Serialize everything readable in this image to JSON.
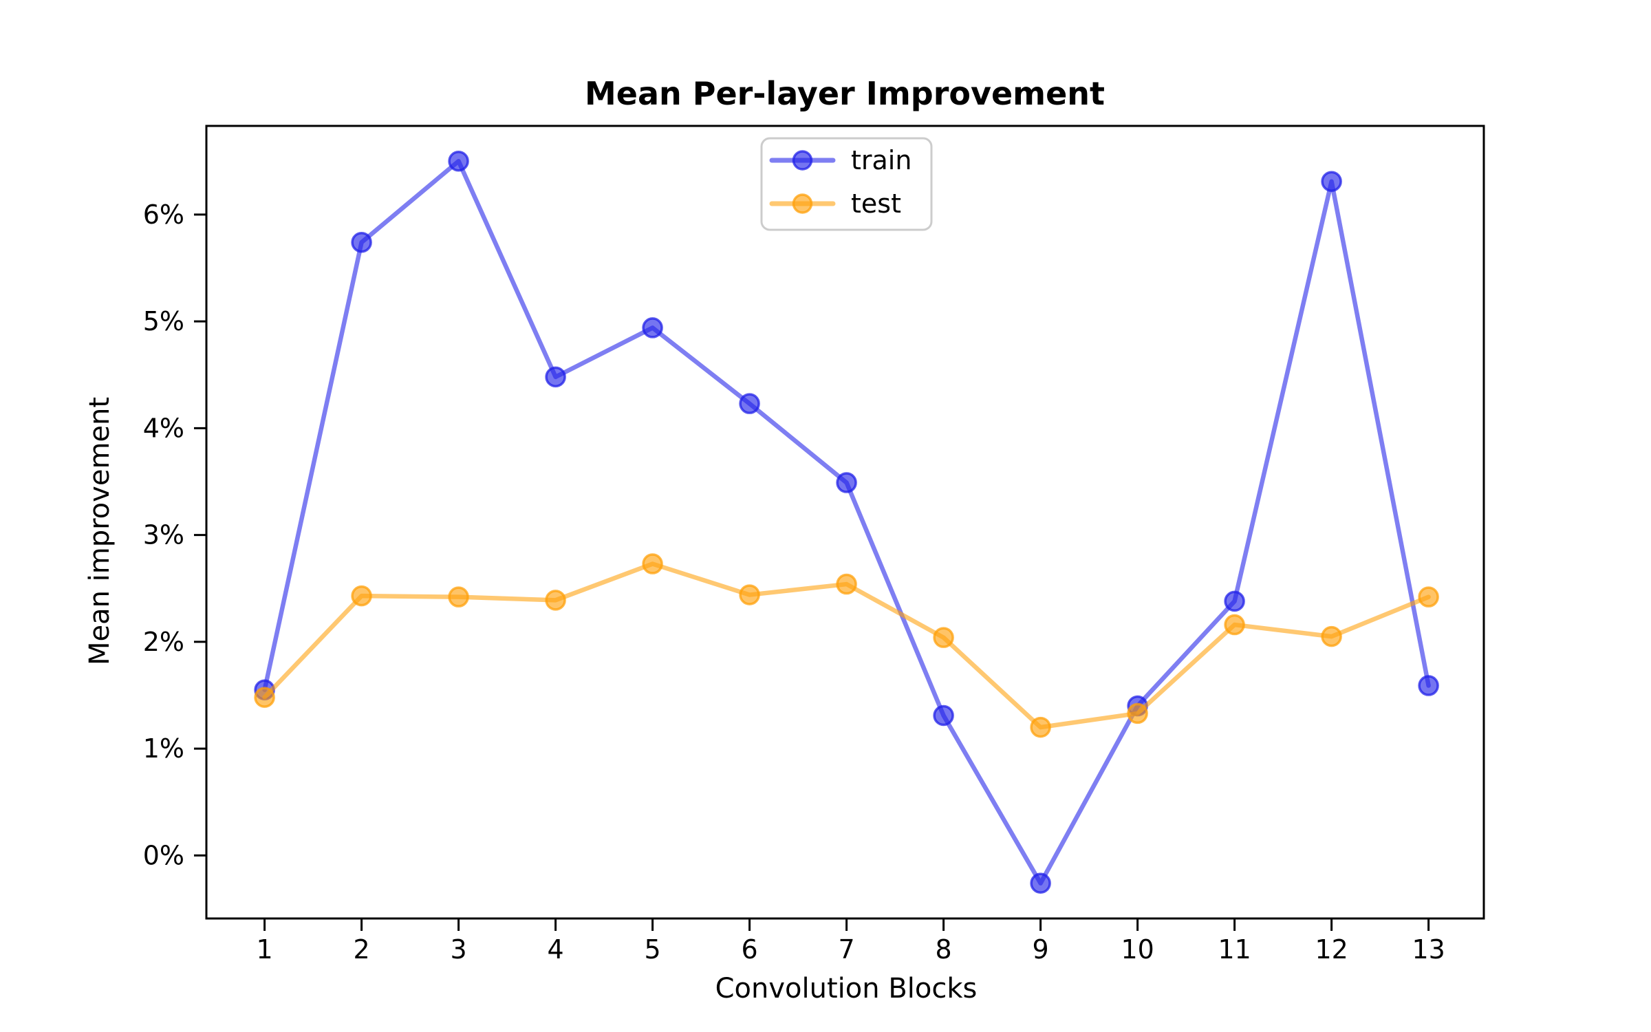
{
  "chart_data": {
    "type": "line",
    "title": "Mean Per-layer Improvement",
    "xlabel": "Convolution Blocks",
    "ylabel": "Mean improvement",
    "categories": [
      1,
      2,
      3,
      4,
      5,
      6,
      7,
      8,
      9,
      10,
      11,
      12,
      13
    ],
    "series": [
      {
        "name": "train",
        "color": "#2020e8",
        "values": [
          1.55,
          5.74,
          6.5,
          4.48,
          4.94,
          4.23,
          3.49,
          1.31,
          -0.26,
          1.4,
          2.38,
          6.31,
          1.59
        ]
      },
      {
        "name": "test",
        "color": "#ffa00a",
        "values": [
          1.48,
          2.43,
          2.42,
          2.39,
          2.73,
          2.44,
          2.54,
          2.04,
          1.2,
          1.33,
          2.16,
          2.05,
          2.42
        ]
      }
    ],
    "yticks": [
      0,
      1,
      2,
      3,
      4,
      5,
      6
    ],
    "ytick_labels": [
      "0%",
      "1%",
      "2%",
      "3%",
      "4%",
      "5%",
      "6%"
    ],
    "ylim": [
      -0.59,
      6.83
    ],
    "xlim": [
      0.4,
      13.57
    ],
    "grid": false,
    "legend_position": "upper center",
    "legend_border_color": "#cccccc",
    "axis_color": "#000000",
    "background_color": "#ffffff"
  }
}
